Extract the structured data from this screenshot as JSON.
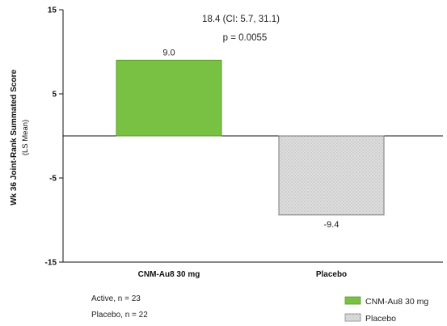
{
  "chart_data": {
    "type": "bar",
    "categories": [
      "CNM-Au8 30 mg",
      "Placebo"
    ],
    "values": [
      9.0,
      -9.4
    ],
    "value_labels": [
      "9.0",
      "-9.4"
    ],
    "ylabel": "Wk 36 Joint-Rank Summated Score",
    "ylabel_sub": "(LS Mean)",
    "ylim": [
      -15,
      15
    ],
    "yticks": [
      -15,
      -5,
      5,
      15
    ],
    "ytick_labels": [
      "-15",
      "-5",
      "5",
      "15"
    ],
    "colors": [
      "#79c143",
      "#dcdcdc"
    ],
    "grid": false,
    "annotation": {
      "line1": "18.4 (CI: 5.7, 31.1)",
      "line2": "p = 0.0055"
    },
    "legend": {
      "placement": "bottom-right",
      "entries": [
        "CNM-Au8 30 mg",
        "Placebo"
      ]
    },
    "notes": [
      "Active, n = 23",
      "Placebo, n = 22"
    ]
  }
}
